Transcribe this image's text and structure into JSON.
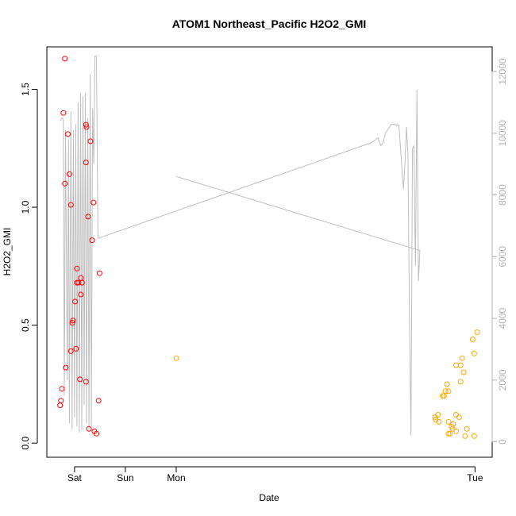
{
  "chart_data": {
    "type": "scatter",
    "title": "ATOM1 Northeast_Pacific H2O2_GMI",
    "xlabel": "Date",
    "ylabel": "H2O2_GMI",
    "x_ticks": [
      "Sat",
      "Sun",
      "Mon",
      "Tue"
    ],
    "x_range_days": [
      -0.43,
      1.05
    ],
    "ylim": [
      -0.06,
      1.68
    ],
    "y_ticks": [
      0.0,
      0.5,
      1.0,
      1.5
    ],
    "y2lim": [
      -500,
      12800
    ],
    "y2_ticks": [
      0,
      2000,
      4000,
      6000,
      8000,
      10000,
      12000
    ],
    "grid": false,
    "colors": {
      "series1": "#ff0000",
      "series2": "#ffa500",
      "altitude": "#bebebe"
    },
    "series": [
      {
        "color": "#ff0000",
        "points": [
          [
            -0.37,
            1.63
          ],
          [
            -0.375,
            1.4
          ],
          [
            -0.36,
            1.31
          ],
          [
            -0.355,
            1.14
          ],
          [
            -0.37,
            1.1
          ],
          [
            -0.35,
            1.01
          ],
          [
            -0.3,
            1.35
          ],
          [
            -0.298,
            1.34
          ],
          [
            -0.285,
            1.28
          ],
          [
            -0.3,
            1.19
          ],
          [
            -0.275,
            1.02
          ],
          [
            -0.293,
            0.96
          ],
          [
            -0.28,
            0.86
          ],
          [
            -0.33,
            0.74
          ],
          [
            -0.255,
            0.72
          ],
          [
            -0.317,
            0.7
          ],
          [
            -0.33,
            0.68
          ],
          [
            -0.325,
            0.68
          ],
          [
            -0.313,
            0.68
          ],
          [
            -0.317,
            0.63
          ],
          [
            -0.336,
            0.6
          ],
          [
            -0.343,
            0.52
          ],
          [
            -0.345,
            0.51
          ],
          [
            -0.333,
            0.4
          ],
          [
            -0.35,
            0.39
          ],
          [
            -0.367,
            0.32
          ],
          [
            -0.38,
            0.23
          ],
          [
            -0.32,
            0.27
          ],
          [
            -0.3,
            0.26
          ],
          [
            -0.383,
            0.18
          ],
          [
            -0.258,
            0.18
          ],
          [
            -0.386,
            0.16
          ],
          [
            -0.29,
            0.06
          ],
          [
            -0.272,
            0.05
          ],
          [
            -0.265,
            0.04
          ]
        ]
      },
      {
        "color": "#ffa500",
        "points": [
          [
            0.0,
            0.36
          ],
          [
            1.0,
            0.47
          ],
          [
            0.985,
            0.44
          ],
          [
            0.99,
            0.38
          ],
          [
            0.95,
            0.36
          ],
          [
            0.93,
            0.33
          ],
          [
            0.945,
            0.33
          ],
          [
            0.955,
            0.3
          ],
          [
            0.945,
            0.26
          ],
          [
            0.9,
            0.25
          ],
          [
            0.895,
            0.22
          ],
          [
            0.905,
            0.22
          ],
          [
            0.885,
            0.2
          ],
          [
            0.89,
            0.2
          ],
          [
            0.87,
            0.12
          ],
          [
            0.86,
            0.11
          ],
          [
            0.93,
            0.12
          ],
          [
            0.94,
            0.11
          ],
          [
            0.862,
            0.1
          ],
          [
            0.873,
            0.09
          ],
          [
            0.905,
            0.09
          ],
          [
            0.92,
            0.08
          ],
          [
            0.915,
            0.07
          ],
          [
            0.918,
            0.06
          ],
          [
            0.966,
            0.06
          ],
          [
            0.93,
            0.05
          ],
          [
            0.91,
            0.04
          ],
          [
            0.905,
            0.04
          ],
          [
            0.96,
            0.03
          ],
          [
            0.99,
            0.03
          ]
        ]
      }
    ],
    "altitude_line": [
      [
        -0.385,
        10400
      ],
      [
        -0.38,
        10500
      ],
      [
        -0.375,
        10450
      ],
      [
        -0.372,
        1500
      ],
      [
        -0.368,
        10100
      ],
      [
        -0.362,
        2000
      ],
      [
        -0.358,
        9800
      ],
      [
        -0.355,
        600
      ],
      [
        -0.35,
        10700
      ],
      [
        -0.346,
        400
      ],
      [
        -0.342,
        10100
      ],
      [
        -0.338,
        800
      ],
      [
        -0.334,
        10300
      ],
      [
        -0.33,
        500
      ],
      [
        -0.326,
        11000
      ],
      [
        -0.322,
        300
      ],
      [
        -0.318,
        11300
      ],
      [
        -0.314,
        400
      ],
      [
        -0.31,
        11200
      ],
      [
        -0.306,
        1200
      ],
      [
        -0.302,
        11300
      ],
      [
        -0.298,
        600
      ],
      [
        -0.294,
        10500
      ],
      [
        -0.29,
        400
      ],
      [
        -0.286,
        11900
      ],
      [
        -0.282,
        500
      ],
      [
        -0.278,
        10800
      ],
      [
        -0.274,
        9000
      ],
      [
        -0.27,
        12500
      ],
      [
        -0.265,
        12500
      ],
      [
        -0.26,
        6600
      ],
      [
        -0.258,
        6600
      ],
      [
        0.65,
        9700
      ],
      [
        0.67,
        9850
      ],
      [
        0.68,
        9600
      ],
      [
        0.688,
        9700
      ],
      [
        0.695,
        10000
      ],
      [
        0.715,
        10300
      ],
      [
        0.74,
        10250
      ],
      [
        0.755,
        8200
      ],
      [
        0.76,
        9000
      ],
      [
        0.765,
        10200
      ],
      [
        0.77,
        9300
      ],
      [
        0.775,
        4000
      ],
      [
        0.78,
        200
      ],
      [
        0.785,
        9500
      ],
      [
        0.79,
        9600
      ],
      [
        0.795,
        5700
      ],
      [
        0.8,
        11400
      ],
      [
        0.805,
        5200
      ],
      [
        0.81,
        6200
      ],
      [
        0.0,
        8600
      ]
    ]
  }
}
